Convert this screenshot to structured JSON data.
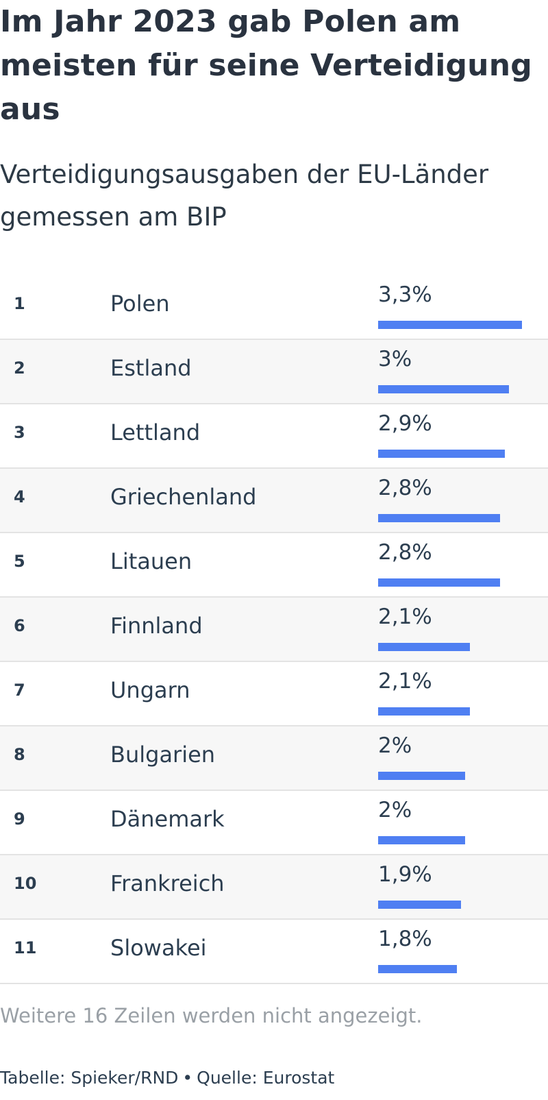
{
  "title": "Im Jahr 2023 gab Polen am meisten für seine Verteidigung aus",
  "subtitle": "Verteidigungsausgaben der EU-Länder gemessen am BIP",
  "bar_color": "#4f7ff2",
  "chart_data": {
    "type": "table",
    "columns": [
      "",
      "",
      ""
    ],
    "rows": [
      {
        "rank": "1",
        "country": "Polen",
        "value": 3.3,
        "label": "3,3%"
      },
      {
        "rank": "2",
        "country": "Estland",
        "value": 3.0,
        "label": "3%"
      },
      {
        "rank": "3",
        "country": "Lettland",
        "value": 2.9,
        "label": "2,9%"
      },
      {
        "rank": "4",
        "country": "Griechenland",
        "value": 2.8,
        "label": "2,8%"
      },
      {
        "rank": "5",
        "country": "Litauen",
        "value": 2.8,
        "label": "2,8%"
      },
      {
        "rank": "6",
        "country": "Finnland",
        "value": 2.1,
        "label": "2,1%"
      },
      {
        "rank": "7",
        "country": "Ungarn",
        "value": 2.1,
        "label": "2,1%"
      },
      {
        "rank": "8",
        "country": "Bulgarien",
        "value": 2.0,
        "label": "2%"
      },
      {
        "rank": "9",
        "country": "Dänemark",
        "value": 2.0,
        "label": "2%"
      },
      {
        "rank": "10",
        "country": "Frankreich",
        "value": 1.9,
        "label": "1,9%"
      },
      {
        "rank": "11",
        "country": "Slowakei",
        "value": 1.8,
        "label": "1,8%"
      }
    ],
    "value_max": 3.3
  },
  "note": "Weitere 16 Zeilen werden nicht angezeigt.",
  "footer": {
    "credit": "Tabelle: Spieker/RND",
    "separator": "•",
    "source": "Quelle: Eurostat"
  }
}
